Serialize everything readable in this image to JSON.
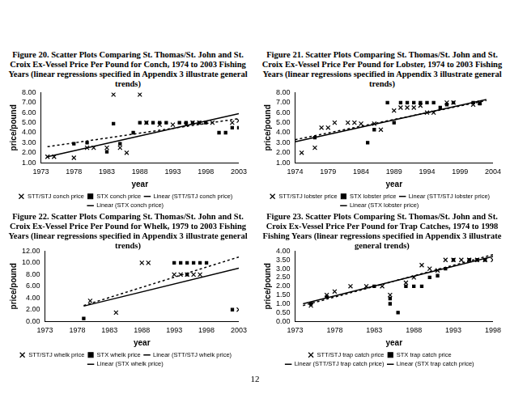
{
  "page_number": "12",
  "chart_data": [
    {
      "type": "scatter",
      "title": "Figure 20.  Scatter Plots Comparing St. Thomas/St. John and St. Croix Ex-Vessel Price Per Pound for Conch, 1974 to 2003 Fishing Years (linear regressions specified in Appendix 3 illustrate general trends)",
      "x_label": "year",
      "y_label": "price/pound",
      "xlim": [
        1973,
        2003
      ],
      "xticks": [
        1973,
        1978,
        1983,
        1988,
        1993,
        1998,
        2003
      ],
      "ylim": [
        1,
        8
      ],
      "yticks": [
        {
          "value": 1,
          "label": "1.00"
        },
        {
          "value": 2,
          "label": "2.00"
        },
        {
          "value": 3,
          "label": "3.00"
        },
        {
          "value": 4,
          "label": "4.00"
        },
        {
          "value": 5,
          "label": "5.00"
        },
        {
          "value": 6,
          "label": "6.00"
        },
        {
          "value": 7,
          "label": "7.00"
        },
        {
          "value": 8,
          "label": "8.00"
        }
      ],
      "grid": false,
      "legend": "bottom",
      "series": [
        {
          "name": "STT/STJ conch price",
          "type": "scatter",
          "marker": "x",
          "color": "#000000",
          "x": [
            1974,
            1975,
            1978,
            1980,
            1981,
            1983,
            1984,
            1985,
            1986,
            1988,
            1989,
            1991,
            1993,
            1995,
            1996,
            1997,
            1999,
            2002,
            2003
          ],
          "values": [
            1.6,
            1.6,
            1.5,
            2.5,
            2.5,
            2.5,
            7.8,
            2.5,
            2.0,
            7.8,
            5.0,
            4.8,
            4.8,
            4.8,
            5.0,
            5.0,
            5.0,
            5.0,
            5.2
          ]
        },
        {
          "name": "STX conch price",
          "type": "scatter",
          "marker": "square",
          "color": "#000000",
          "x": [
            1978,
            1980,
            1983,
            1984,
            1985,
            1987,
            1988,
            1989,
            1990,
            1991,
            1992,
            1994,
            1995,
            1996,
            1997,
            1998,
            2000,
            2001,
            2002,
            2003
          ],
          "values": [
            2.9,
            3.0,
            2.1,
            4.9,
            2.9,
            4.0,
            5.0,
            5.0,
            5.0,
            5.0,
            5.0,
            5.0,
            5.0,
            5.0,
            5.0,
            5.0,
            4.0,
            4.0,
            4.5,
            4.5
          ]
        },
        {
          "name": "Linear (STT/STJ conch price)",
          "type": "line",
          "line_style": "solid",
          "color": "#000000",
          "x": [
            1974,
            2003
          ],
          "values": [
            1.6,
            5.9
          ]
        },
        {
          "name": "Linear (STX conch price)",
          "type": "line",
          "line_style": "dashed",
          "color": "#000000",
          "x": [
            1974,
            2003
          ],
          "values": [
            2.6,
            5.4
          ]
        }
      ]
    },
    {
      "type": "scatter",
      "title": "Figure 21.  Scatter Plots Comparing St. Thomas/St. John and St. Croix Ex-Vessel Price Per Pound for Lobster, 1974 to 2003 Fishing Years (linear regressions specified in Appendix 3 illustrate general trends)",
      "x_label": "year",
      "y_label": "price/pound",
      "xlim": [
        1974,
        2004
      ],
      "xticks": [
        1974,
        1979,
        1984,
        1989,
        1994,
        1999,
        2004
      ],
      "ylim": [
        1,
        8
      ],
      "yticks": [
        {
          "value": 1,
          "label": "1.00"
        },
        {
          "value": 2,
          "label": "2.00"
        },
        {
          "value": 3,
          "label": "3.00"
        },
        {
          "value": 4,
          "label": "4.00"
        },
        {
          "value": 5,
          "label": "5.00"
        },
        {
          "value": 6,
          "label": "6.00"
        },
        {
          "value": 7,
          "label": "7.00"
        },
        {
          "value": 8,
          "label": "8.00"
        }
      ],
      "grid": false,
      "legend": "bottom",
      "series": [
        {
          "name": "STT/STJ lobster price",
          "type": "scatter",
          "marker": "x",
          "color": "#000000",
          "x": [
            1975,
            1977,
            1978,
            1979,
            1980,
            1982,
            1983,
            1984,
            1986,
            1987,
            1989,
            1990,
            1991,
            1992,
            1993,
            1994,
            1995,
            1997,
            1998,
            2001,
            2002
          ],
          "values": [
            2.0,
            2.5,
            4.5,
            4.5,
            5.0,
            5.0,
            5.0,
            4.9,
            4.9,
            4.3,
            6.2,
            6.5,
            6.5,
            6.5,
            6.7,
            6.0,
            6.0,
            7.0,
            7.0,
            6.8,
            7.0
          ]
        },
        {
          "name": "STX lobster price",
          "type": "scatter",
          "marker": "square",
          "color": "#000000",
          "x": [
            1977,
            1985,
            1986,
            1988,
            1989,
            1990,
            1991,
            1992,
            1993,
            1994,
            1995,
            1996,
            1997,
            1998,
            2001,
            2002
          ],
          "values": [
            3.5,
            3.0,
            4.3,
            7.0,
            5.0,
            7.0,
            7.0,
            7.0,
            7.0,
            7.0,
            7.0,
            6.5,
            6.8,
            7.0,
            7.0,
            6.9
          ]
        },
        {
          "name": "Linear (STT/STJ lobster price)",
          "type": "line",
          "line_style": "solid",
          "color": "#000000",
          "x": [
            1974,
            2003
          ],
          "values": [
            3.1,
            7.3
          ]
        },
        {
          "name": "Linear (STX lobster price)",
          "type": "line",
          "line_style": "dashed",
          "color": "#000000",
          "x": [
            1974,
            2003
          ],
          "values": [
            3.3,
            7.2
          ]
        }
      ]
    },
    {
      "type": "scatter",
      "title": "Figure 22.  Scatter Plots Comparing St. Thomas/St. John and St. Croix Ex-Vessel Price Per Pound for Whelk, 1979 to 2003 Fishing Years (linear regressions specified in Appendix 3 illustrate general trends)",
      "x_label": "year",
      "y_label": "price/pound",
      "xlim": [
        1973,
        2003
      ],
      "xticks": [
        1973,
        1978,
        1983,
        1988,
        1993,
        1998,
        2003
      ],
      "ylim": [
        0,
        12
      ],
      "yticks": [
        {
          "value": 0,
          "label": "0.00"
        },
        {
          "value": 2,
          "label": "2.00"
        },
        {
          "value": 4,
          "label": "4.00"
        },
        {
          "value": 6,
          "label": "6.00"
        },
        {
          "value": 8,
          "label": "8.00"
        },
        {
          "value": 10,
          "label": "10.00"
        },
        {
          "value": 12,
          "label": "12.00"
        }
      ],
      "grid": false,
      "legend": "bottom",
      "series": [
        {
          "name": "STT/STJ whelk price",
          "type": "scatter",
          "marker": "x",
          "color": "#000000",
          "x": [
            1980,
            1984,
            1988,
            1989,
            1993,
            1994,
            1995,
            1996,
            1997,
            2003
          ],
          "values": [
            3.5,
            1.5,
            10.0,
            10.0,
            8.0,
            8.0,
            8.0,
            8.0,
            8.0,
            2.0
          ]
        },
        {
          "name": "STX whelk price",
          "type": "scatter",
          "marker": "square",
          "color": "#000000",
          "x": [
            1979,
            1993,
            1994,
            1995,
            1995,
            1996,
            1997,
            1998,
            2002
          ],
          "values": [
            0.5,
            10.0,
            10.0,
            10.0,
            8.0,
            10.0,
            10.0,
            10.0,
            2.0
          ]
        },
        {
          "name": "Linear (STT/STJ whelk price)",
          "type": "line",
          "line_style": "solid",
          "color": "#000000",
          "x": [
            1979,
            2003
          ],
          "values": [
            2.6,
            9.1
          ]
        },
        {
          "name": "Linear (STX whelk price)",
          "type": "line",
          "line_style": "dashed",
          "color": "#000000",
          "x": [
            1979,
            2003
          ],
          "values": [
            2.7,
            11.0
          ]
        }
      ]
    },
    {
      "type": "scatter",
      "title": "Figure 23.  Scatter Plots Comparing St. Thomas/St. John and St. Croix Ex-Vessel Price Per Pound for Trap Catches, 1974 to 1998 Fishing Years (linear regressions specified in Appendix 3 illustrate general trends)",
      "x_label": "year",
      "y_label": "price/pound",
      "xlim": [
        1973,
        1998
      ],
      "xticks": [
        1973,
        1978,
        1983,
        1988,
        1993,
        1998
      ],
      "ylim": [
        0,
        4
      ],
      "yticks": [
        {
          "value": 0,
          "label": "0.00"
        },
        {
          "value": 0.5,
          "label": "0.50"
        },
        {
          "value": 1,
          "label": "1.00"
        },
        {
          "value": 1.5,
          "label": "1.50"
        },
        {
          "value": 2,
          "label": "2.00"
        },
        {
          "value": 2.5,
          "label": "2.50"
        },
        {
          "value": 3,
          "label": "3.00"
        },
        {
          "value": 3.5,
          "label": "3.50"
        },
        {
          "value": 4,
          "label": "4.00"
        }
      ],
      "grid": false,
      "legend": "bottom",
      "series": [
        {
          "name": "STT/STJ trap catch price",
          "type": "scatter",
          "marker": "x",
          "color": "#000000",
          "x": [
            1975,
            1977,
            1978,
            1980,
            1982,
            1984,
            1985,
            1987,
            1988,
            1989,
            1990,
            1991,
            1992,
            1993,
            1994,
            1995,
            1996,
            1997,
            1998
          ],
          "values": [
            0.9,
            1.5,
            1.7,
            2.0,
            2.0,
            2.0,
            1.5,
            2.2,
            2.5,
            3.2,
            3.0,
            2.9,
            3.5,
            3.5,
            3.5,
            3.5,
            3.5,
            3.5,
            3.5
          ]
        },
        {
          "name": "STX trap catch price",
          "type": "scatter",
          "marker": "square",
          "color": "#000000",
          "x": [
            1975,
            1977,
            1983,
            1985,
            1985,
            1986,
            1987,
            1988,
            1989,
            1990,
            1991,
            1992,
            1993,
            1995,
            1996,
            1997
          ],
          "values": [
            1.0,
            1.4,
            2.0,
            1.3,
            1.0,
            0.5,
            2.0,
            2.0,
            2.0,
            2.5,
            2.6,
            3.0,
            3.5,
            3.5,
            3.5,
            3.5
          ]
        },
        {
          "name": "Linear (STT/STJ trap catch price)",
          "type": "line",
          "line_style": "solid",
          "color": "#000000",
          "x": [
            1974,
            1998
          ],
          "values": [
            1.0,
            3.7
          ]
        },
        {
          "name": "Linear (STX trap catch price)",
          "type": "line",
          "line_style": "dashed",
          "color": "#000000",
          "x": [
            1974,
            1998
          ],
          "values": [
            0.9,
            3.8
          ]
        }
      ]
    }
  ]
}
